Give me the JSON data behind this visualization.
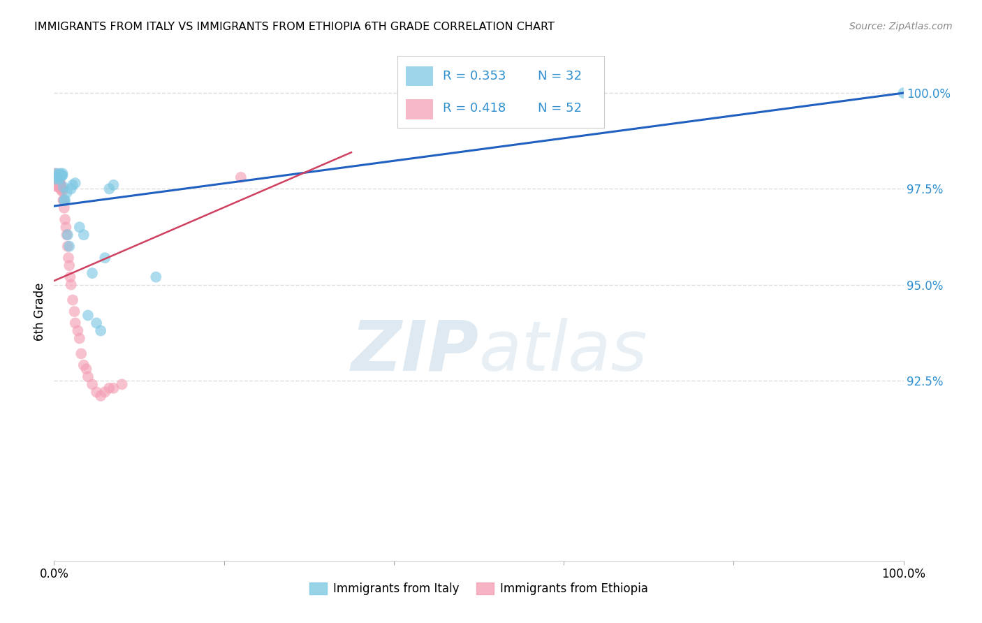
{
  "title": "IMMIGRANTS FROM ITALY VS IMMIGRANTS FROM ETHIOPIA 6TH GRADE CORRELATION CHART",
  "source": "Source: ZipAtlas.com",
  "ylabel": "6th Grade",
  "ylabel_right_ticks": [
    "100.0%",
    "97.5%",
    "95.0%",
    "92.5%"
  ],
  "ylabel_right_vals": [
    1.0,
    0.975,
    0.95,
    0.925
  ],
  "color_italy": "#7ec8e3",
  "color_ethiopia": "#f4a0b5",
  "color_line_italy": "#2060c0",
  "color_line_ethiopia": "#d04060",
  "color_legend_text": "#3090d0",
  "color_right_axis": "#3090d0",
  "background_color": "#ffffff",
  "grid_color": "#dddddd",
  "italy_x": [
    0.001,
    0.003,
    0.005,
    0.006,
    0.006,
    0.007,
    0.007,
    0.008,
    0.009,
    0.009,
    0.01,
    0.01,
    0.011,
    0.012,
    0.013,
    0.015,
    0.016,
    0.018,
    0.02,
    0.022,
    0.025,
    0.03,
    0.035,
    0.04,
    0.045,
    0.05,
    0.055,
    0.06,
    0.065,
    0.07,
    0.12,
    1.0
  ],
  "italy_y": [
    0.9775,
    0.979,
    0.9785,
    0.978,
    0.9775,
    0.979,
    0.9785,
    0.9785,
    0.9785,
    0.9785,
    0.979,
    0.9785,
    0.9755,
    0.972,
    0.972,
    0.974,
    0.963,
    0.96,
    0.975,
    0.976,
    0.9765,
    0.965,
    0.963,
    0.942,
    0.953,
    0.94,
    0.938,
    0.957,
    0.975,
    0.976,
    0.952,
    1.0
  ],
  "ethiopia_x": [
    0.0005,
    0.001,
    0.001,
    0.002,
    0.002,
    0.003,
    0.003,
    0.003,
    0.004,
    0.004,
    0.005,
    0.005,
    0.005,
    0.006,
    0.006,
    0.007,
    0.007,
    0.007,
    0.008,
    0.008,
    0.009,
    0.009,
    0.01,
    0.01,
    0.011,
    0.011,
    0.012,
    0.013,
    0.014,
    0.015,
    0.016,
    0.017,
    0.018,
    0.019,
    0.02,
    0.022,
    0.024,
    0.025,
    0.028,
    0.03,
    0.032,
    0.035,
    0.038,
    0.04,
    0.045,
    0.05,
    0.055,
    0.06,
    0.065,
    0.07,
    0.08,
    0.22
  ],
  "ethiopia_y": [
    0.978,
    0.979,
    0.9775,
    0.978,
    0.977,
    0.977,
    0.9775,
    0.978,
    0.977,
    0.9755,
    0.977,
    0.9765,
    0.9755,
    0.977,
    0.9755,
    0.977,
    0.9755,
    0.976,
    0.9755,
    0.976,
    0.9745,
    0.975,
    0.9745,
    0.975,
    0.972,
    0.972,
    0.97,
    0.967,
    0.965,
    0.963,
    0.96,
    0.957,
    0.955,
    0.952,
    0.95,
    0.946,
    0.943,
    0.94,
    0.938,
    0.936,
    0.932,
    0.929,
    0.928,
    0.926,
    0.924,
    0.922,
    0.921,
    0.922,
    0.923,
    0.923,
    0.924,
    0.978
  ],
  "blue_line_x": [
    0.0,
    1.0
  ],
  "blue_line_y": [
    0.9705,
    1.0
  ],
  "pink_line_x": [
    0.0,
    0.35
  ],
  "pink_line_y": [
    0.951,
    0.9845
  ],
  "xlim": [
    0.0,
    1.0
  ],
  "ylim": [
    0.878,
    1.008
  ]
}
